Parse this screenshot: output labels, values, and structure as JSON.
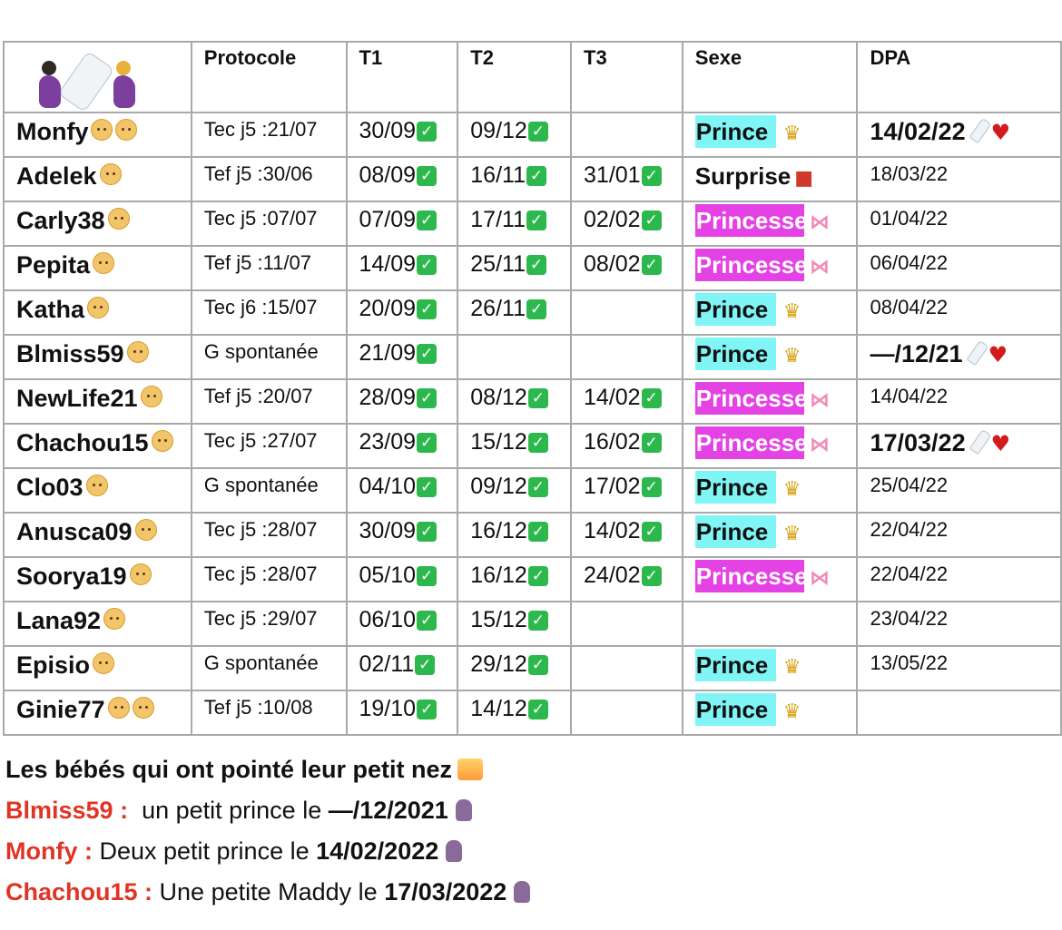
{
  "headers": [
    "Protocole",
    "T1",
    "T2",
    "T3",
    "Sexe",
    "DPA"
  ],
  "header_icons": [
    "pregnant-woman-icon",
    "baby-bottle-icon",
    "pregnant-woman-icon"
  ],
  "rows": [
    {
      "name": "Monfy",
      "babies": 2,
      "protocole": "Tec j5 :21/07",
      "t1": "30/09",
      "t1_check": true,
      "t2": "09/12",
      "t2_check": true,
      "t3": "",
      "t3_check": false,
      "sexe": "Prince",
      "sexe_type": "prince",
      "dpa": "14/02/22",
      "dpa_bold": true,
      "born": true
    },
    {
      "name": "Adelek",
      "babies": 1,
      "protocole": "Tef j5 :30/06",
      "t1": "08/09",
      "t1_check": true,
      "t2": "16/11",
      "t2_check": true,
      "t3": "31/01",
      "t3_check": true,
      "sexe": "Surprise",
      "sexe_type": "surprise",
      "dpa": "18/03/22",
      "dpa_bold": false,
      "born": false
    },
    {
      "name": "Carly38",
      "babies": 1,
      "protocole": "Tec j5 :07/07",
      "t1": "07/09",
      "t1_check": true,
      "t2": "17/11",
      "t2_check": true,
      "t3": "02/02",
      "t3_check": true,
      "sexe": "Princesse",
      "sexe_type": "princesse",
      "dpa": "01/04/22",
      "dpa_bold": false,
      "born": false
    },
    {
      "name": "Pepita",
      "babies": 1,
      "protocole": "Tef j5 :11/07",
      "t1": "14/09",
      "t1_check": true,
      "t2": "25/11",
      "t2_check": true,
      "t3": "08/02",
      "t3_check": true,
      "sexe": "Princesse",
      "sexe_type": "princesse",
      "dpa": "06/04/22",
      "dpa_bold": false,
      "born": false
    },
    {
      "name": "Katha",
      "babies": 1,
      "protocole": "Tec j6 :15/07",
      "t1": "20/09",
      "t1_check": true,
      "t2": "26/11",
      "t2_check": true,
      "t3": "",
      "t3_check": false,
      "sexe": "Prince",
      "sexe_type": "prince",
      "dpa": "08/04/22",
      "dpa_bold": false,
      "born": false
    },
    {
      "name": "Blmiss59",
      "babies": 1,
      "protocole": "G spontanée",
      "t1": "21/09",
      "t1_check": true,
      "t2": "",
      "t2_check": false,
      "t3": "",
      "t3_check": false,
      "sexe": "Prince",
      "sexe_type": "prince",
      "dpa": "—/12/21",
      "dpa_bold": true,
      "born": true
    },
    {
      "name": "NewLife21",
      "babies": 1,
      "protocole": "Tef j5 :20/07",
      "t1": "28/09",
      "t1_check": true,
      "t2": "08/12",
      "t2_check": true,
      "t3": "14/02",
      "t3_check": true,
      "sexe": "Princesse",
      "sexe_type": "princesse",
      "dpa": "14/04/22",
      "dpa_bold": false,
      "born": false
    },
    {
      "name": "Chachou15",
      "babies": 1,
      "protocole": "Tec j5 :27/07",
      "t1": "23/09",
      "t1_check": true,
      "t2": "15/12",
      "t2_check": true,
      "t3": "16/02",
      "t3_check": true,
      "sexe": "Princesse",
      "sexe_type": "princesse",
      "dpa": "17/03/22",
      "dpa_bold": true,
      "born": true
    },
    {
      "name": "Clo03",
      "babies": 1,
      "protocole": "G spontanée",
      "t1": "04/10",
      "t1_check": true,
      "t2": "09/12",
      "t2_check": true,
      "t3": "17/02",
      "t3_check": true,
      "sexe": "Prince",
      "sexe_type": "prince",
      "dpa": "25/04/22",
      "dpa_bold": false,
      "born": false
    },
    {
      "name": "Anusca09",
      "babies": 1,
      "protocole": "Tec j5 :28/07",
      "t1": "30/09",
      "t1_check": true,
      "t2": "16/12",
      "t2_check": true,
      "t3": "14/02",
      "t3_check": true,
      "sexe": "Prince",
      "sexe_type": "prince",
      "dpa": "22/04/22",
      "dpa_bold": false,
      "born": false
    },
    {
      "name": "Soorya19",
      "babies": 1,
      "protocole": "Tec j5 :28/07",
      "t1": "05/10",
      "t1_check": true,
      "t2": "16/12",
      "t2_check": true,
      "t3": "24/02",
      "t3_check": true,
      "sexe": "Princesse",
      "sexe_type": "princesse",
      "dpa": "22/04/22",
      "dpa_bold": false,
      "born": false
    },
    {
      "name": "Lana92",
      "babies": 1,
      "protocole": "Tec j5 :29/07",
      "t1": "06/10",
      "t1_check": true,
      "t2": "15/12",
      "t2_check": true,
      "t3": "",
      "t3_check": false,
      "sexe": "",
      "sexe_type": "",
      "dpa": "23/04/22",
      "dpa_bold": false,
      "born": false
    },
    {
      "name": "Episio",
      "babies": 1,
      "protocole": "G spontanée",
      "t1": "02/11",
      "t1_check": true,
      "t2": "29/12",
      "t2_check": true,
      "t3": "",
      "t3_check": false,
      "sexe": "Prince",
      "sexe_type": "prince",
      "dpa": "13/05/22",
      "dpa_bold": false,
      "born": false
    },
    {
      "name": "Ginie77",
      "babies": 2,
      "protocole": "Tef j5 :10/08",
      "t1": "19/10",
      "t1_check": true,
      "t2": "14/12",
      "t2_check": true,
      "t3": "",
      "t3_check": false,
      "sexe": "Prince",
      "sexe_type": "prince",
      "dpa": "",
      "dpa_bold": false,
      "born": false
    }
  ],
  "colors": {
    "prince": "#7ff5f5",
    "princesse": "#e542e5",
    "name_red": "#e03424",
    "check_green": "#2db84d",
    "grid": "#a9a9a9"
  },
  "footer": {
    "title": "Les bébés qui ont pointé leur petit nez",
    "title_icon": "sunrise-icon",
    "entries": [
      {
        "name": "Blmiss59 :",
        "text": "  un petit prince le ",
        "date": "—/12/2021",
        "icon": "breastfeeding-icon"
      },
      {
        "name": "Monfy :",
        "text": " Deux petit prince le ",
        "date": "14/02/2022",
        "icon": "breastfeeding-icon"
      },
      {
        "name": "Chachou15 :",
        "text": " Une petite Maddy le ",
        "date": "17/03/2022",
        "icon": "breastfeeding-icon"
      }
    ]
  }
}
